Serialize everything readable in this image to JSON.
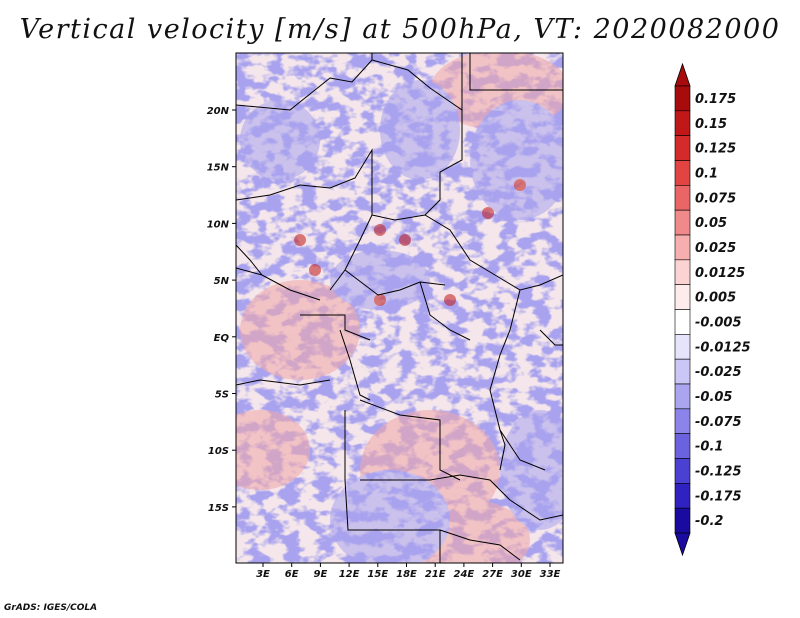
{
  "title": "Vertical velocity [m/s] at 500hPa, VT: 2020082000",
  "footer": "GrADS: IGES/COLA",
  "axes": {
    "x_ticks": [
      "3E",
      "6E",
      "9E",
      "12E",
      "15E",
      "18E",
      "21E",
      "24E",
      "27E",
      "30E",
      "33E"
    ],
    "y_ticks": [
      "20N",
      "15N",
      "10N",
      "5N",
      "EQ",
      "5S",
      "10S",
      "15S"
    ]
  },
  "colorbar": {
    "labels": [
      "0.175",
      "0.15",
      "0.125",
      "0.1",
      "0.075",
      "0.05",
      "0.025",
      "0.0125",
      "0.005",
      "-0.005",
      "-0.0125",
      "-0.025",
      "-0.05",
      "-0.075",
      "-0.1",
      "-0.125",
      "-0.175",
      "-0.2"
    ],
    "colors": [
      "#a80b0b",
      "#c01818",
      "#d42a2a",
      "#e24343",
      "#ea6565",
      "#f08a8a",
      "#f6aeae",
      "#fbd3d3",
      "#fdeceb",
      "#ffffff",
      "#e6e4fb",
      "#cac6f6",
      "#aba5f0",
      "#8c84ea",
      "#6b62e0",
      "#4a40d2",
      "#2f22c0",
      "#1a0aa0"
    ],
    "top_color": "#a80b0b",
    "bottom_color": "#1a0aa0"
  },
  "map_colors": {
    "positive": "#f2a7a7",
    "negative": "#a9a3ef",
    "base": "#f4e6ea"
  }
}
